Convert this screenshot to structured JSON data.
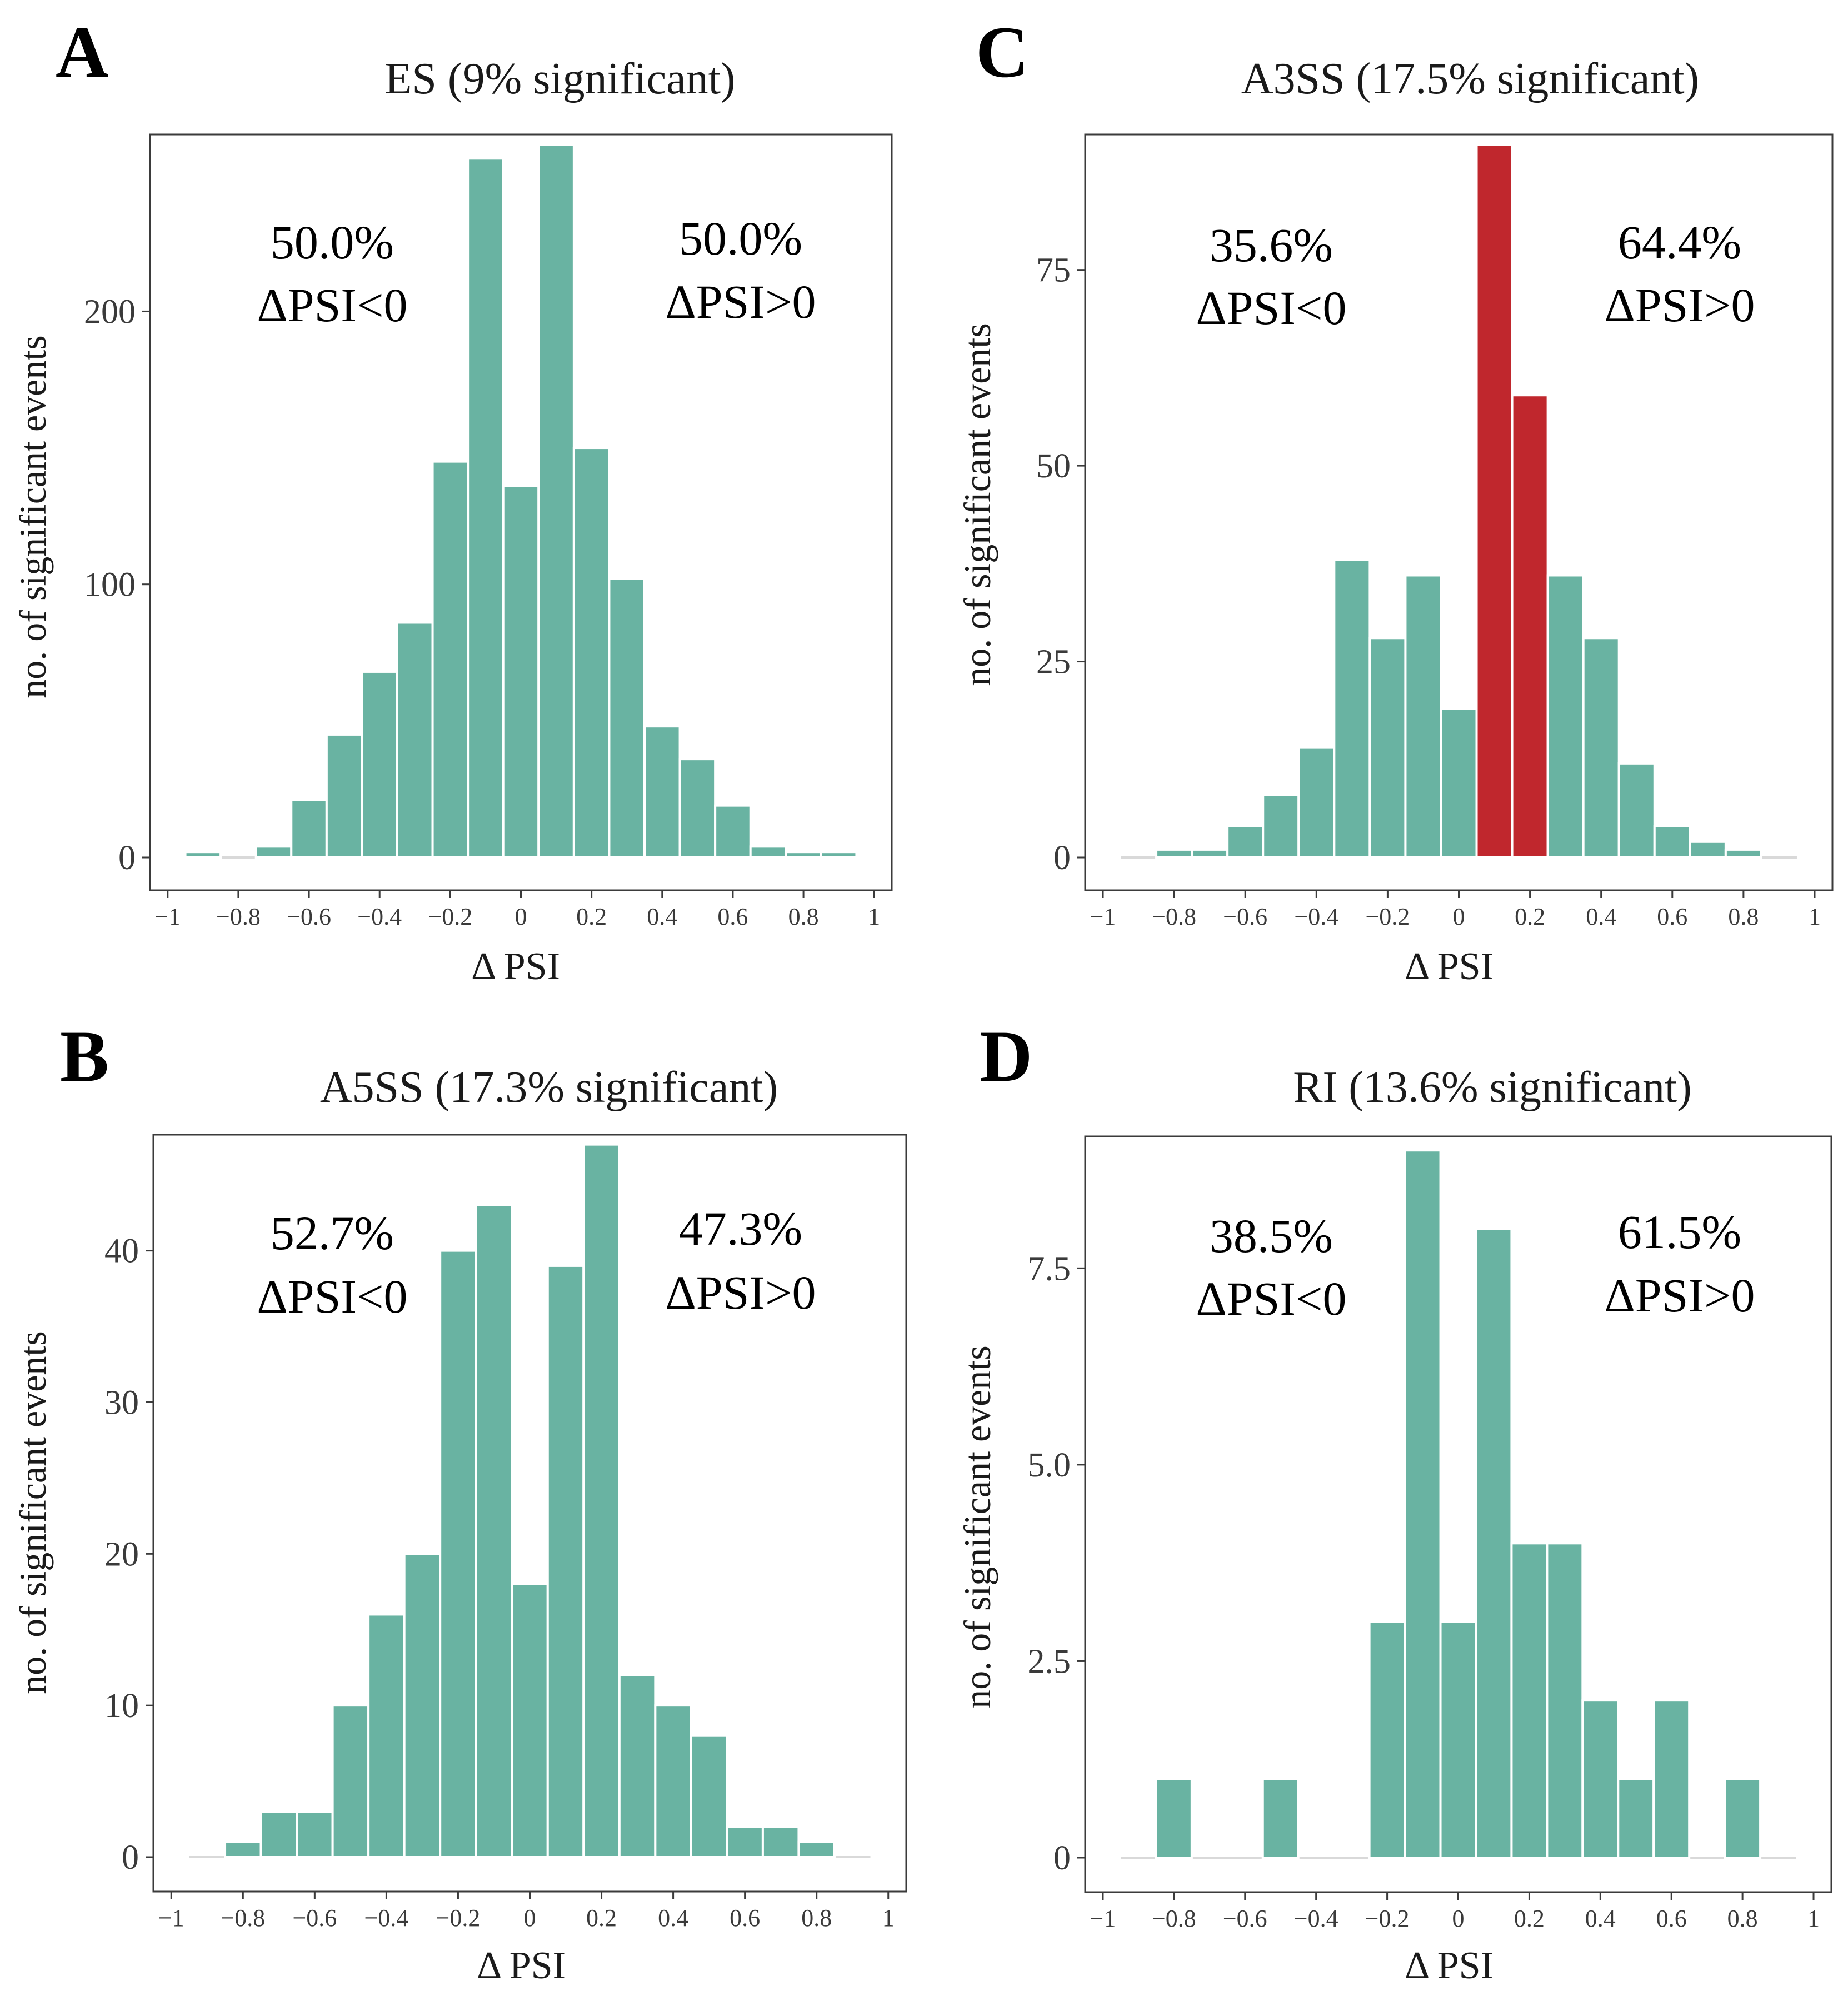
{
  "chart_data": [
    {
      "id": "A",
      "panel_label": "A",
      "type": "bar",
      "title": "ES (9% significant)",
      "xlabel": "Δ PSI",
      "ylabel": "no. of significant events",
      "xlim": [
        -1.05,
        1.05
      ],
      "ylim": [
        0,
        264
      ],
      "xticks": [
        -1,
        -0.8,
        -0.6,
        -0.4,
        -0.2,
        0,
        0.2,
        0.4,
        0.6,
        0.8,
        1
      ],
      "xtick_labels": [
        "−1",
        "−0.8",
        "−0.6",
        "−0.4",
        "−0.2",
        "0",
        "0.2",
        "0.4",
        "0.6",
        "0.8",
        "1"
      ],
      "yticks": [
        0,
        100,
        200
      ],
      "ytick_labels": [
        "0",
        "100",
        "200"
      ],
      "bin_width": 0.1,
      "bin_centers": [
        -0.9,
        -0.7,
        -0.6,
        -0.5,
        -0.4,
        -0.3,
        -0.2,
        -0.1,
        0,
        0.1,
        0.2,
        0.3,
        0.4,
        0.5,
        0.6,
        0.7,
        0.8,
        0.9
      ],
      "values": [
        2,
        4,
        21,
        45,
        68,
        86,
        145,
        256,
        136,
        261,
        150,
        102,
        48,
        36,
        19,
        4,
        2,
        2
      ],
      "colors": [
        "#69b3a2",
        "#69b3a2",
        "#69b3a2",
        "#69b3a2",
        "#69b3a2",
        "#69b3a2",
        "#69b3a2",
        "#69b3a2",
        "#69b3a2",
        "#69b3a2",
        "#69b3a2",
        "#69b3a2",
        "#69b3a2",
        "#69b3a2",
        "#69b3a2",
        "#69b3a2",
        "#69b3a2",
        "#69b3a2"
      ],
      "annotation_left": {
        "pct": "50.0%",
        "label": "ΔPSI<0"
      },
      "annotation_right": {
        "pct": "50.0%",
        "label": "ΔPSI>0"
      }
    },
    {
      "id": "B",
      "panel_label": "B",
      "type": "bar",
      "title": "A5SS (17.3% significant)",
      "xlabel": "Δ PSI",
      "ylabel": "no. of significant events",
      "xlim": [
        -1.05,
        1.05
      ],
      "ylim": [
        0,
        47.5
      ],
      "xticks": [
        -1,
        -0.8,
        -0.6,
        -0.4,
        -0.2,
        0,
        0.2,
        0.4,
        0.6,
        0.8,
        1
      ],
      "xtick_labels": [
        "−1",
        "−0.8",
        "−0.6",
        "−0.4",
        "−0.2",
        "0",
        "0.2",
        "0.4",
        "0.6",
        "0.8",
        "1"
      ],
      "yticks": [
        0,
        10,
        20,
        30,
        40
      ],
      "ytick_labels": [
        "0",
        "10",
        "20",
        "30",
        "40"
      ],
      "bin_width": 0.1,
      "bin_centers": [
        -0.8,
        -0.7,
        -0.6,
        -0.5,
        -0.4,
        -0.3,
        -0.2,
        -0.1,
        0,
        0.1,
        0.2,
        0.3,
        0.4,
        0.5,
        0.6,
        0.7,
        0.8
      ],
      "values": [
        1,
        3,
        3,
        10,
        16,
        20,
        40,
        43,
        18,
        39,
        47,
        12,
        10,
        8,
        2,
        2,
        1
      ],
      "colors": [
        "#69b3a2",
        "#69b3a2",
        "#69b3a2",
        "#69b3a2",
        "#69b3a2",
        "#69b3a2",
        "#69b3a2",
        "#69b3a2",
        "#69b3a2",
        "#69b3a2",
        "#69b3a2",
        "#69b3a2",
        "#69b3a2",
        "#69b3a2",
        "#69b3a2",
        "#69b3a2",
        "#69b3a2"
      ],
      "annotation_left": {
        "pct": "52.7%",
        "label": "ΔPSI<0"
      },
      "annotation_right": {
        "pct": "47.3%",
        "label": "ΔPSI>0"
      }
    },
    {
      "id": "C",
      "panel_label": "C",
      "type": "bar",
      "title": "A3SS (17.5% significant)",
      "xlabel": "Δ PSI",
      "ylabel": "no. of significant events",
      "xlim": [
        -1.05,
        1.05
      ],
      "ylim": [
        0,
        92
      ],
      "xticks": [
        -1,
        -0.8,
        -0.6,
        -0.4,
        -0.2,
        0,
        0.2,
        0.4,
        0.6,
        0.8,
        1
      ],
      "xtick_labels": [
        "−1",
        "−0.8",
        "−0.6",
        "−0.4",
        "−0.2",
        "0",
        "0.2",
        "0.4",
        "0.6",
        "0.8",
        "1"
      ],
      "yticks": [
        0,
        25,
        50,
        75
      ],
      "ytick_labels": [
        "0",
        "25",
        "50",
        "75"
      ],
      "bin_width": 0.1,
      "bin_centers": [
        -0.8,
        -0.7,
        -0.6,
        -0.5,
        -0.4,
        -0.3,
        -0.2,
        -0.1,
        0,
        0.1,
        0.2,
        0.3,
        0.4,
        0.5,
        0.6,
        0.7,
        0.8
      ],
      "values": [
        1,
        1,
        4,
        8,
        14,
        38,
        28,
        36,
        19,
        91,
        59,
        36,
        28,
        12,
        4,
        2,
        1
      ],
      "colors": [
        "#69b3a2",
        "#69b3a2",
        "#69b3a2",
        "#69b3a2",
        "#69b3a2",
        "#69b3a2",
        "#69b3a2",
        "#69b3a2",
        "#69b3a2",
        "#c0272d",
        "#c0272d",
        "#69b3a2",
        "#69b3a2",
        "#69b3a2",
        "#69b3a2",
        "#69b3a2",
        "#69b3a2"
      ],
      "annotation_left": {
        "pct": "35.6%",
        "label": "ΔPSI<0"
      },
      "annotation_right": {
        "pct": "64.4%",
        "label": "ΔPSI>0"
      }
    },
    {
      "id": "D",
      "panel_label": "D",
      "type": "bar",
      "title": "RI (13.6% significant)",
      "xlabel": "Δ PSI",
      "ylabel": "no. of significant events",
      "xlim": [
        -1.05,
        1.05
      ],
      "ylim": [
        0,
        9.15
      ],
      "xticks": [
        -1,
        -0.8,
        -0.6,
        -0.4,
        -0.2,
        0,
        0.2,
        0.4,
        0.6,
        0.8,
        1
      ],
      "xtick_labels": [
        "−1",
        "−0.8",
        "−0.6",
        "−0.4",
        "−0.2",
        "0",
        "0.2",
        "0.4",
        "0.6",
        "0.8",
        "1"
      ],
      "yticks": [
        0,
        2.5,
        5,
        7.5
      ],
      "ytick_labels": [
        "0",
        "2.5",
        "5.0",
        "7.5"
      ],
      "bin_width": 0.1,
      "bin_centers": [
        -0.8,
        -0.5,
        -0.2,
        -0.1,
        0,
        0.1,
        0.2,
        0.3,
        0.4,
        0.5,
        0.6,
        0.8
      ],
      "values": [
        1,
        1,
        3,
        9,
        3,
        8,
        4,
        4,
        2,
        1,
        2,
        1
      ],
      "colors": [
        "#69b3a2",
        "#69b3a2",
        "#69b3a2",
        "#69b3a2",
        "#69b3a2",
        "#69b3a2",
        "#69b3a2",
        "#69b3a2",
        "#69b3a2",
        "#69b3a2",
        "#69b3a2",
        "#69b3a2"
      ],
      "annotation_left": {
        "pct": "38.5%",
        "label": "ΔPSI<0"
      },
      "annotation_right": {
        "pct": "61.5%",
        "label": "ΔPSI>0"
      }
    }
  ]
}
